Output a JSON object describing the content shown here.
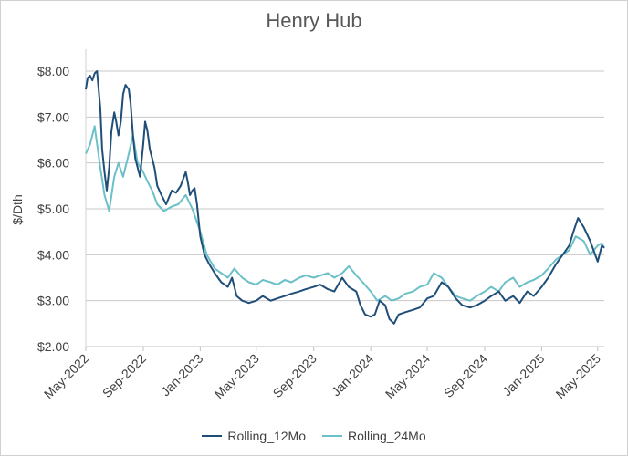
{
  "chart_data": {
    "type": "line",
    "title": "Henry Hub",
    "xlabel": "",
    "ylabel": "$/Dth",
    "ylim": [
      2.0,
      8.0
    ],
    "yticks": [
      "$2.00",
      "$3.00",
      "$4.00",
      "$5.00",
      "$6.00",
      "$7.00",
      "$8.00"
    ],
    "xlim": [
      "2022-05-01",
      "2025-05-15"
    ],
    "xticks": [
      "May-2022",
      "Sep-2022",
      "Jan-2023",
      "May-2023",
      "Sep-2023",
      "Jan-2024",
      "May-2024",
      "Sep-2024",
      "Jan-2025",
      "May-2025"
    ],
    "grid": "horizontal",
    "legend": "bottom",
    "colors": {
      "Rolling_12Mo": "#1f4e79",
      "Rolling_24Mo": "#6cc0c8"
    },
    "series": [
      {
        "name": "Rolling_12Mo",
        "x": [
          "2022-05-01",
          "2022-05-05",
          "2022-05-10",
          "2022-05-15",
          "2022-05-20",
          "2022-05-25",
          "2022-06-01",
          "2022-06-05",
          "2022-06-10",
          "2022-06-15",
          "2022-06-20",
          "2022-06-25",
          "2022-07-01",
          "2022-07-05",
          "2022-07-10",
          "2022-07-15",
          "2022-07-20",
          "2022-07-25",
          "2022-08-01",
          "2022-08-05",
          "2022-08-10",
          "2022-08-15",
          "2022-08-20",
          "2022-08-25",
          "2022-09-01",
          "2022-09-05",
          "2022-09-10",
          "2022-09-15",
          "2022-09-20",
          "2022-09-25",
          "2022-10-01",
          "2022-10-10",
          "2022-10-20",
          "2022-11-01",
          "2022-11-10",
          "2022-11-20",
          "2022-12-01",
          "2022-12-05",
          "2022-12-10",
          "2022-12-15",
          "2022-12-20",
          "2022-12-25",
          "2023-01-01",
          "2023-01-10",
          "2023-01-20",
          "2023-02-01",
          "2023-02-15",
          "2023-03-01",
          "2023-03-10",
          "2023-03-20",
          "2023-04-01",
          "2023-04-15",
          "2023-05-01",
          "2023-05-15",
          "2023-06-01",
          "2023-06-15",
          "2023-07-01",
          "2023-07-15",
          "2023-08-01",
          "2023-08-15",
          "2023-09-01",
          "2023-09-15",
          "2023-10-01",
          "2023-10-15",
          "2023-11-01",
          "2023-11-15",
          "2023-12-01",
          "2023-12-10",
          "2023-12-20",
          "2024-01-01",
          "2024-01-10",
          "2024-01-20",
          "2024-02-01",
          "2024-02-10",
          "2024-02-20",
          "2024-03-01",
          "2024-03-15",
          "2024-04-01",
          "2024-04-15",
          "2024-05-01",
          "2024-05-15",
          "2024-06-01",
          "2024-06-15",
          "2024-07-01",
          "2024-07-15",
          "2024-08-01",
          "2024-08-15",
          "2024-09-01",
          "2024-09-15",
          "2024-10-01",
          "2024-10-15",
          "2024-11-01",
          "2024-11-15",
          "2024-12-01",
          "2024-12-15",
          "2025-01-01",
          "2025-01-15",
          "2025-02-01",
          "2025-02-15",
          "2025-03-01",
          "2025-03-10",
          "2025-03-20",
          "2025-04-01",
          "2025-04-15",
          "2025-05-01",
          "2025-05-10",
          "2025-05-15"
        ],
        "values": [
          7.6,
          7.85,
          7.9,
          7.8,
          7.95,
          8.0,
          7.2,
          6.3,
          5.8,
          5.4,
          5.9,
          6.7,
          7.1,
          6.9,
          6.6,
          6.9,
          7.5,
          7.7,
          7.6,
          7.3,
          6.6,
          6.1,
          5.9,
          5.7,
          6.4,
          6.9,
          6.7,
          6.3,
          6.1,
          5.9,
          5.5,
          5.3,
          5.1,
          5.4,
          5.35,
          5.5,
          5.8,
          5.6,
          5.3,
          5.4,
          5.45,
          5.1,
          4.4,
          4.0,
          3.8,
          3.6,
          3.4,
          3.3,
          3.5,
          3.1,
          3.0,
          2.95,
          3.0,
          3.1,
          3.0,
          3.05,
          3.1,
          3.15,
          3.2,
          3.25,
          3.3,
          3.35,
          3.25,
          3.2,
          3.5,
          3.3,
          3.2,
          2.9,
          2.7,
          2.65,
          2.7,
          3.0,
          2.9,
          2.6,
          2.5,
          2.7,
          2.75,
          2.8,
          2.85,
          3.05,
          3.1,
          3.4,
          3.3,
          3.05,
          2.9,
          2.85,
          2.9,
          3.0,
          3.1,
          3.2,
          3.0,
          3.1,
          2.95,
          3.2,
          3.1,
          3.3,
          3.5,
          3.8,
          4.0,
          4.2,
          4.5,
          4.8,
          4.6,
          4.3,
          3.85,
          4.2,
          4.15
        ]
      },
      {
        "name": "Rolling_24Mo",
        "x": [
          "2022-05-01",
          "2022-05-10",
          "2022-05-20",
          "2022-06-01",
          "2022-06-10",
          "2022-06-20",
          "2022-07-01",
          "2022-07-10",
          "2022-07-20",
          "2022-08-01",
          "2022-08-10",
          "2022-08-20",
          "2022-09-01",
          "2022-09-10",
          "2022-09-20",
          "2022-10-01",
          "2022-10-15",
          "2022-11-01",
          "2022-11-15",
          "2022-12-01",
          "2022-12-15",
          "2023-01-01",
          "2023-01-15",
          "2023-02-01",
          "2023-02-15",
          "2023-03-01",
          "2023-03-15",
          "2023-04-01",
          "2023-04-15",
          "2023-05-01",
          "2023-05-15",
          "2023-06-01",
          "2023-06-15",
          "2023-07-01",
          "2023-07-15",
          "2023-08-01",
          "2023-08-15",
          "2023-09-01",
          "2023-09-15",
          "2023-10-01",
          "2023-10-15",
          "2023-11-01",
          "2023-11-15",
          "2023-12-01",
          "2023-12-15",
          "2024-01-01",
          "2024-01-15",
          "2024-02-01",
          "2024-02-15",
          "2024-03-01",
          "2024-03-15",
          "2024-04-01",
          "2024-04-15",
          "2024-05-01",
          "2024-05-15",
          "2024-06-01",
          "2024-06-15",
          "2024-07-01",
          "2024-07-15",
          "2024-08-01",
          "2024-08-15",
          "2024-09-01",
          "2024-09-15",
          "2024-10-01",
          "2024-10-15",
          "2024-11-01",
          "2024-11-15",
          "2024-12-01",
          "2024-12-15",
          "2025-01-01",
          "2025-01-15",
          "2025-02-01",
          "2025-02-15",
          "2025-03-01",
          "2025-03-15",
          "2025-04-01",
          "2025-04-15",
          "2025-05-01",
          "2025-05-10",
          "2025-05-15"
        ],
        "values": [
          6.2,
          6.4,
          6.8,
          5.9,
          5.3,
          4.95,
          5.7,
          6.0,
          5.7,
          6.2,
          6.6,
          6.0,
          5.8,
          5.6,
          5.4,
          5.1,
          4.95,
          5.05,
          5.1,
          5.3,
          5.0,
          4.5,
          4.0,
          3.7,
          3.6,
          3.5,
          3.7,
          3.5,
          3.4,
          3.35,
          3.45,
          3.4,
          3.35,
          3.45,
          3.4,
          3.5,
          3.55,
          3.5,
          3.55,
          3.6,
          3.5,
          3.6,
          3.75,
          3.55,
          3.4,
          3.2,
          3.0,
          3.1,
          3.0,
          3.05,
          3.15,
          3.2,
          3.3,
          3.35,
          3.6,
          3.5,
          3.3,
          3.1,
          3.05,
          3.0,
          3.1,
          3.2,
          3.3,
          3.2,
          3.4,
          3.5,
          3.3,
          3.4,
          3.45,
          3.55,
          3.7,
          3.9,
          4.0,
          4.1,
          4.4,
          4.3,
          4.0,
          4.2,
          4.25,
          4.15
        ]
      }
    ]
  }
}
